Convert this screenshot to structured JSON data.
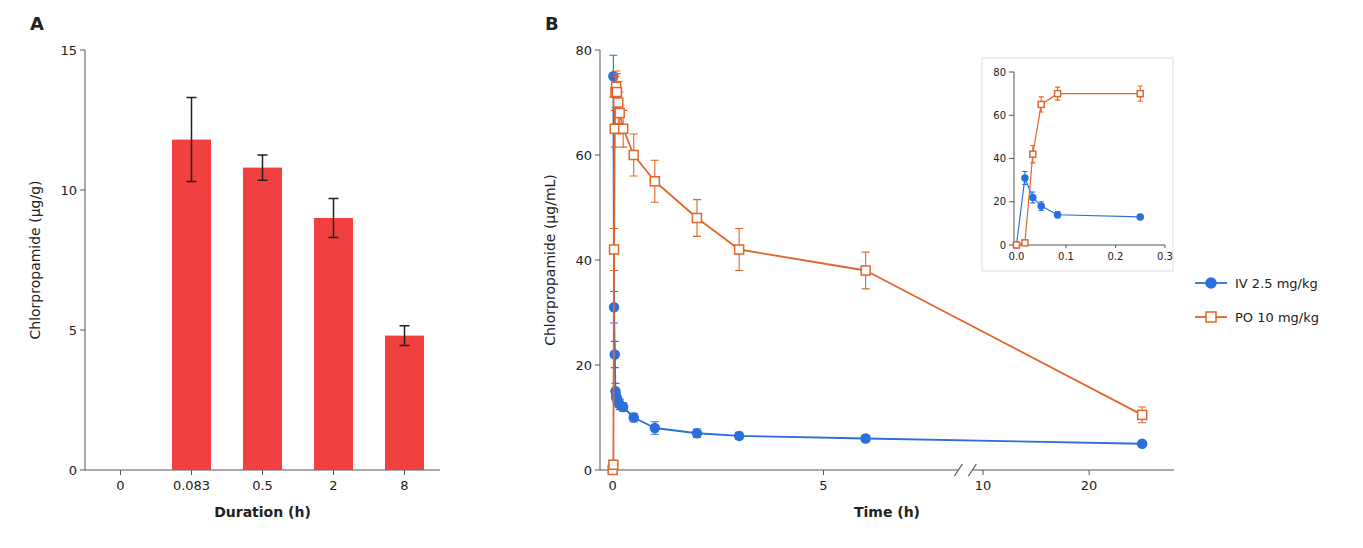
{
  "chart_data": [
    {
      "type": "bar",
      "title": "A",
      "categories": [
        "0",
        "0.083",
        "0.5",
        "2",
        "8"
      ],
      "values": [
        null,
        11.8,
        10.8,
        9.0,
        4.8
      ],
      "errors": [
        null,
        1.5,
        0.45,
        0.7,
        0.35
      ],
      "color": "#f04040",
      "xlabel": "Duration (h)",
      "ylabel": "Chlorpropamide (μg/g)",
      "ylim": [
        0,
        15
      ],
      "yticks": [
        0,
        5,
        10,
        15
      ],
      "grid": false
    },
    {
      "type": "line",
      "title": "B",
      "xlabel": "Time (h)",
      "ylabel": "Chlorpropamide (μg/mL)",
      "xlim": [
        -0.3,
        28
      ],
      "x_break": [
        8.2,
        9
      ],
      "xticks": [
        0,
        5,
        10,
        20
      ],
      "ylim": [
        0,
        80
      ],
      "yticks": [
        0,
        20,
        40,
        60,
        80
      ],
      "grid": false,
      "legend": "right",
      "series": [
        {
          "name": "IV 2.5 mg/kg",
          "marker": "circle",
          "x": [
            0.017,
            0.033,
            0.05,
            0.067,
            0.083,
            0.1,
            0.133,
            0.167,
            0.25,
            0.5,
            1.0,
            2.0,
            3.0,
            6.0,
            25.0
          ],
          "values": [
            75.0,
            31.0,
            22.0,
            15.0,
            14.0,
            13.5,
            13.0,
            12.5,
            12.0,
            10.0,
            8.0,
            7.0,
            6.5,
            6.0,
            5.0
          ],
          "errors": [
            4.0,
            3.0,
            2.5,
            1.5,
            1.2,
            1.2,
            1.0,
            1.0,
            0.8,
            0.8,
            1.2,
            0.8,
            0.7,
            0.6,
            0.4
          ]
        },
        {
          "name": "PO 10 mg/kg",
          "marker": "square-open",
          "x": [
            0.0,
            0.017,
            0.033,
            0.05,
            0.067,
            0.083,
            0.1,
            0.133,
            0.167,
            0.25,
            0.5,
            1.0,
            2.0,
            3.0,
            6.0,
            25.0
          ],
          "values": [
            0.0,
            1.0,
            42.0,
            65.0,
            72.0,
            73.0,
            72.0,
            70.0,
            68.0,
            65.0,
            60.0,
            55.0,
            48.0,
            42.0,
            38.0,
            10.5
          ],
          "errors": [
            0.0,
            0.5,
            4.0,
            3.5,
            3.0,
            3.0,
            3.5,
            4.0,
            4.0,
            3.5,
            4.0,
            4.0,
            3.5,
            4.0,
            3.5,
            1.5
          ]
        }
      ]
    },
    {
      "type": "line",
      "xlim": [
        -0.005,
        0.3
      ],
      "xticks": [
        {
          "value": 0.0,
          "label": "0.0"
        },
        0.1,
        0.2,
        0.3
      ],
      "ylim": [
        0,
        80
      ],
      "yticks": [
        0,
        20,
        40,
        60,
        80
      ],
      "grid": false,
      "series": [
        {
          "marker": "circle",
          "x": [
            0.0,
            0.017,
            0.033,
            0.05,
            0.083,
            0.25
          ],
          "values": [
            0.0,
            31.0,
            22.0,
            18.0,
            14.0,
            13.0
          ],
          "errors": [
            0.0,
            3.0,
            2.5,
            2.0,
            1.5,
            1.0
          ]
        },
        {
          "marker": "square-open",
          "x": [
            0.0,
            0.017,
            0.033,
            0.05,
            0.083,
            0.25
          ],
          "values": [
            0.0,
            1.0,
            42.0,
            65.0,
            70.0,
            70.0
          ],
          "errors": [
            0.0,
            0.5,
            4.0,
            3.5,
            3.0,
            3.5
          ]
        }
      ]
    }
  ]
}
